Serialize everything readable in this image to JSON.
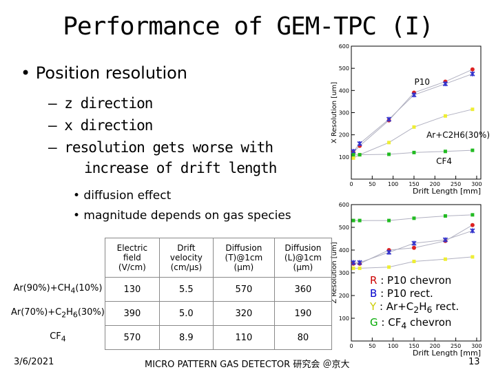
{
  "title": "Performance of GEM-TPC (I)",
  "bullets": {
    "level1": "Position resolution",
    "level2": [
      "– z direction",
      "– x direction",
      "– resolution gets worse with",
      "increase of drift length"
    ],
    "level3": [
      "• diffusion effect",
      "• magnitude depends on gas species"
    ]
  },
  "table": {
    "headers": [
      "Electric field (V/cm)",
      "Drift velocity (cm/μs)",
      "Diffusion (T)@1cm (μm)",
      "Diffusion (L)@1cm (μm)"
    ],
    "header_lines": [
      [
        "Electric",
        "field",
        "(V/cm)"
      ],
      [
        "Drift",
        "velocity",
        "(cm/μs)"
      ],
      [
        "Diffusion",
        "(T)@1cm",
        "(μm)"
      ],
      [
        "Diffusion",
        "(L)@1cm",
        "(μm)"
      ]
    ],
    "rows": [
      {
        "gas": "Ar(90%)+CH4(10%)",
        "field": "130",
        "velocity": "5.5",
        "diffT": "570",
        "diffL": "360"
      },
      {
        "gas": "Ar(70%)+C2H6(30%)",
        "field": "390",
        "velocity": "5.0",
        "diffT": "320",
        "diffL": "190"
      },
      {
        "gas": "CF4",
        "field": "570",
        "velocity": "8.9",
        "diffT": "110",
        "diffL": "80"
      }
    ]
  },
  "legend": {
    "r": {
      "key": "R",
      "text": " : P10 chevron",
      "color": "#cc0000"
    },
    "b": {
      "key": "B",
      "text": " : P10 rect.",
      "color": "#0000cc"
    },
    "y": {
      "key": "Y",
      "text": " : Ar+C2H6 rect.",
      "color": "#cccc00"
    },
    "g": {
      "key": "G",
      "text": " : CF4 chevron",
      "color": "#00aa00"
    }
  },
  "footer": {
    "date": "3/6/2021",
    "event": "MICRO PATTERN GAS DETECTOR 研究会 ＠京大",
    "page": "13"
  },
  "chart_data": [
    {
      "type": "scatter",
      "title": "",
      "xlabel": "Drift Length [mm]",
      "ylabel": "X Resolution [um]",
      "xlim": [
        0,
        310
      ],
      "ylim": [
        0,
        600
      ],
      "xticks": [
        0,
        50,
        100,
        150,
        200,
        250,
        300
      ],
      "yticks": [
        100,
        200,
        300,
        400,
        500,
        600
      ],
      "annotations": [
        "P10",
        "Ar+C2H6(30%)",
        "CF4"
      ],
      "series": [
        {
          "name": "R",
          "color": "#dd2222",
          "marker": "circle",
          "x": [
            5,
            20,
            90,
            150,
            225,
            290
          ],
          "y": [
            120,
            150,
            265,
            390,
            440,
            495
          ]
        },
        {
          "name": "B",
          "color": "#3333cc",
          "marker": "star",
          "x": [
            5,
            20,
            90,
            150,
            225,
            290
          ],
          "y": [
            125,
            160,
            270,
            380,
            430,
            475
          ]
        },
        {
          "name": "Y",
          "color": "#eeee33",
          "marker": "square",
          "x": [
            5,
            20,
            90,
            150,
            225,
            290
          ],
          "y": [
            95,
            110,
            165,
            235,
            285,
            315
          ]
        },
        {
          "name": "G",
          "color": "#22bb22",
          "marker": "square",
          "x": [
            5,
            20,
            90,
            150,
            225,
            290
          ],
          "y": [
            110,
            110,
            112,
            120,
            125,
            130
          ]
        }
      ]
    },
    {
      "type": "scatter",
      "title": "",
      "xlabel": "Drift Length [mm]",
      "ylabel": "Z Resolution [um]",
      "xlim": [
        0,
        310
      ],
      "ylim": [
        0,
        600
      ],
      "xticks": [
        0,
        50,
        100,
        150,
        200,
        250,
        300
      ],
      "yticks": [
        100,
        200,
        300,
        400,
        500,
        600
      ],
      "series": [
        {
          "name": "R",
          "color": "#dd2222",
          "marker": "circle",
          "x": [
            5,
            20,
            90,
            150,
            225,
            290
          ],
          "y": [
            340,
            340,
            400,
            410,
            440,
            510
          ]
        },
        {
          "name": "B",
          "color": "#3333cc",
          "marker": "star",
          "x": [
            5,
            20,
            90,
            150,
            225,
            290
          ],
          "y": [
            345,
            345,
            390,
            430,
            445,
            485
          ]
        },
        {
          "name": "Y",
          "color": "#eeee33",
          "marker": "square",
          "x": [
            5,
            20,
            90,
            150,
            225,
            290
          ],
          "y": [
            320,
            320,
            325,
            350,
            360,
            370
          ]
        },
        {
          "name": "G",
          "color": "#22bb22",
          "marker": "square",
          "x": [
            5,
            20,
            90,
            150,
            225,
            290
          ],
          "y": [
            530,
            530,
            530,
            540,
            550,
            555
          ]
        }
      ]
    }
  ]
}
